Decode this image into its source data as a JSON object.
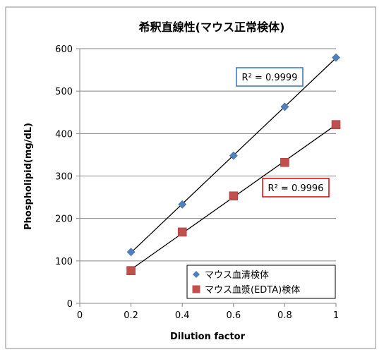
{
  "chart_data": {
    "type": "scatter",
    "title": "希釈直線性(マウス正常検体)",
    "xlabel": "Dilution factor",
    "ylabel": "Phospholipid(mg/dL)",
    "xlim": [
      0,
      1
    ],
    "ylim": [
      0,
      600
    ],
    "xticks": [
      "0",
      "0.2",
      "0.4",
      "0.6",
      "0.8",
      "1"
    ],
    "yticks": [
      "0",
      "100",
      "200",
      "300",
      "400",
      "500",
      "600"
    ],
    "grid": "horizontal",
    "legend_position": "bottom-right",
    "series": [
      {
        "name": "マウス血清検体",
        "marker": "diamond",
        "color": "#4F81BD",
        "x": [
          0.2,
          0.4,
          0.6,
          0.8,
          1.0
        ],
        "y": [
          121,
          233,
          348,
          463,
          579
        ],
        "trendline": true,
        "r2_label": "R² = 0.9999",
        "r2_border": "#2E75B6"
      },
      {
        "name": "マウス血漿(EDTA)検体",
        "marker": "square",
        "color": "#C0504D",
        "x": [
          0.2,
          0.4,
          0.6,
          0.8,
          1.0
        ],
        "y": [
          77,
          168,
          253,
          332,
          421
        ],
        "trendline": true,
        "r2_label": "R² = 0.9996",
        "r2_border": "#E00000"
      }
    ]
  }
}
